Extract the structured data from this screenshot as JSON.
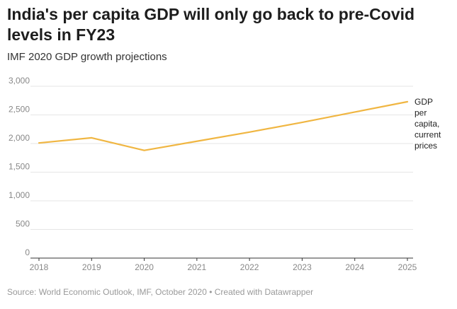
{
  "header": {
    "title": "India's per capita GDP will only go back to pre-Covid levels in FY23",
    "subtitle": "IMF 2020 GDP growth projections"
  },
  "footer": {
    "source": "Source: World Economic Outlook, IMF, October 2020 • Created with Datawrapper"
  },
  "chart_data": {
    "type": "line",
    "title": "India's per capita GDP will only go back to pre-Covid levels in FY23",
    "subtitle": "IMF 2020 GDP growth projections",
    "xlabel": "",
    "ylabel": "",
    "x": [
      2018,
      2019,
      2020,
      2021,
      2022,
      2023,
      2024,
      2025
    ],
    "ylim": [
      0,
      3000
    ],
    "yticks": [
      0,
      500,
      1000,
      1500,
      2000,
      2500,
      3000
    ],
    "ytick_labels": [
      "0",
      "500",
      "1,000",
      "1,500",
      "2,000",
      "2,500",
      "3,000"
    ],
    "xtick_labels": [
      "2018",
      "2019",
      "2020",
      "2021",
      "2022",
      "2023",
      "2024",
      "2025"
    ],
    "grid": true,
    "series": [
      {
        "name": "GDP per capita, current prices",
        "label_lines": [
          "GDP",
          "per",
          "capita,",
          "current",
          "prices"
        ],
        "color": "#f0b642",
        "values": [
          2010,
          2100,
          1880,
          2040,
          2200,
          2370,
          2550,
          2730
        ]
      }
    ]
  }
}
